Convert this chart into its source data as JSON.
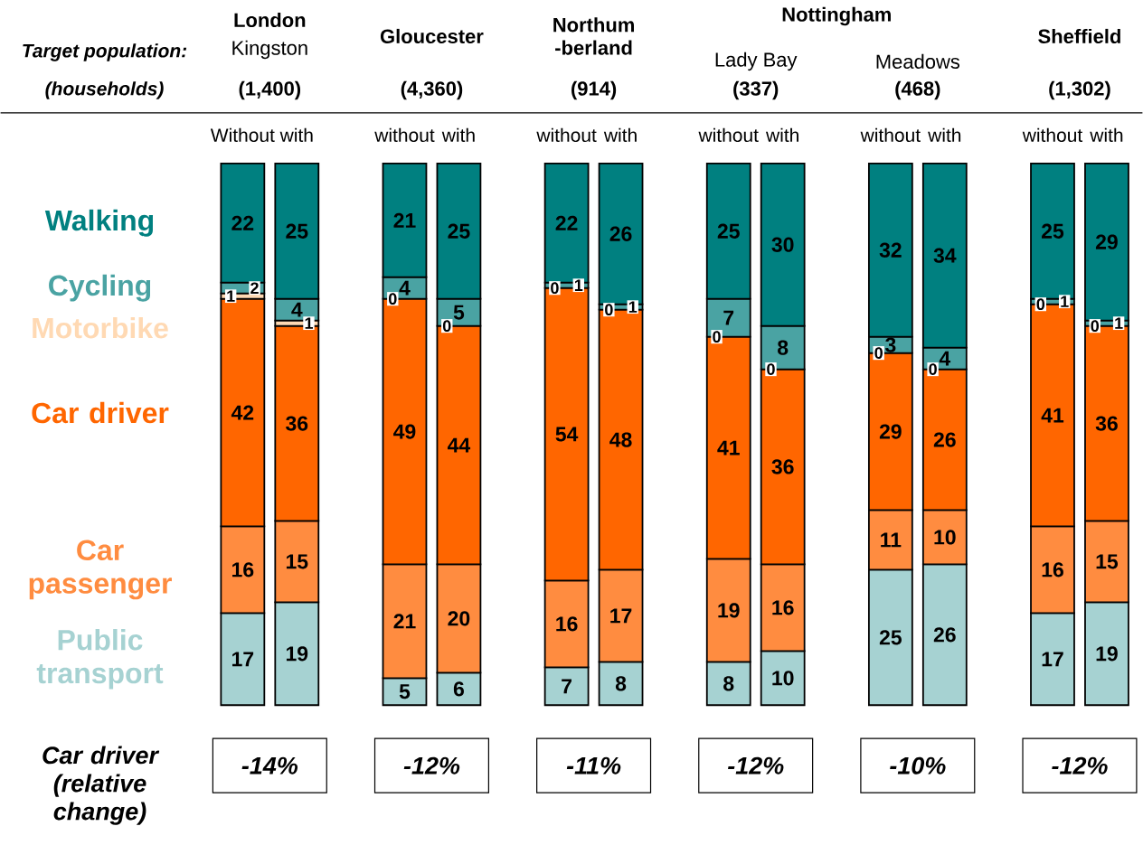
{
  "chart_data": [
    {
      "type": "bar",
      "title": "London",
      "subtitle": "Kingston",
      "categories": [
        "Without",
        "with"
      ],
      "series": [
        {
          "name": "Public transport",
          "color": "#a6d2d2",
          "values": [
            17,
            19
          ]
        },
        {
          "name": "Car passenger",
          "color": "#ff8c40",
          "values": [
            16,
            15
          ]
        },
        {
          "name": "Car driver",
          "color": "#ff6600",
          "values": [
            42,
            36
          ]
        },
        {
          "name": "Motorbike",
          "color": "#ffd9b3",
          "values": [
            1,
            1
          ]
        },
        {
          "name": "Cycling",
          "color": "#4aa3a3",
          "values": [
            2,
            4
          ]
        },
        {
          "name": "Walking",
          "color": "#008080",
          "values": [
            22,
            25
          ]
        }
      ],
      "stacked": true,
      "tick_labels": "x",
      "data_labels": true,
      "annotations": [
        "(1,400)",
        "-14%",
        "Target population:",
        "(households)",
        "Car driver (relative change)"
      ]
    },
    {
      "type": "bar",
      "title": "Gloucester",
      "categories": [
        "without",
        "with"
      ],
      "series": [
        {
          "color": "#a6d2d2",
          "values": [
            5,
            6
          ]
        },
        {
          "color": "#ff8c40",
          "values": [
            21,
            20
          ]
        },
        {
          "color": "#ff6600",
          "values": [
            49,
            44
          ]
        },
        {
          "color": "#4aa3a3",
          "values": [
            4,
            5
          ]
        },
        {
          "color": "#008080",
          "values": [
            21,
            25
          ]
        }
      ],
      "stacked": true,
      "tick_labels": "x",
      "data_labels": true,
      "annotations": [
        "(4,360)",
        "-12%",
        {
          "text": "0",
          "x": "without",
          "y": 75
        },
        {
          "text": "0",
          "x": "with",
          "y": 70
        }
      ]
    },
    {
      "type": "bar",
      "title": "Northum -berland",
      "categories": [
        "without",
        "with"
      ],
      "series": [
        {
          "color": "#a6d2d2",
          "values": [
            7,
            8
          ]
        },
        {
          "color": "#ff8c40",
          "values": [
            16,
            17
          ]
        },
        {
          "color": "#ff6600",
          "values": [
            54,
            48
          ]
        },
        {
          "color": "#4aa3a3",
          "values": [
            1,
            1
          ]
        },
        {
          "color": "#008080",
          "values": [
            22,
            26
          ]
        }
      ],
      "stacked": true,
      "tick_labels": "x",
      "data_labels": true,
      "annotations": [
        "(914)",
        "-11%",
        {
          "text": "0",
          "x": "without",
          "y": 77
        },
        {
          "text": "0",
          "x": "with",
          "y": 73
        }
      ]
    },
    {
      "type": "bar",
      "title": "Nottingham",
      "subtitle": "Lady Bay",
      "categories": [
        "without",
        "with"
      ],
      "series": [
        {
          "color": "#a6d2d2",
          "values": [
            8,
            10
          ]
        },
        {
          "color": "#ff8c40",
          "values": [
            19,
            16
          ]
        },
        {
          "color": "#ff6600",
          "values": [
            41,
            36
          ]
        },
        {
          "color": "#4aa3a3",
          "values": [
            7,
            8
          ]
        },
        {
          "color": "#008080",
          "values": [
            25,
            30
          ]
        }
      ],
      "stacked": true,
      "tick_labels": "x",
      "data_labels": true,
      "annotations": [
        "(337)",
        "-12%",
        {
          "text": "0",
          "x": "without",
          "y": 68
        },
        {
          "text": "0",
          "x": "with",
          "y": 62
        }
      ]
    },
    {
      "type": "bar",
      "subtitle": "Meadows",
      "categories": [
        "without",
        "with"
      ],
      "series": [
        {
          "color": "#a6d2d2",
          "values": [
            25,
            26
          ]
        },
        {
          "color": "#ff8c40",
          "values": [
            11,
            10
          ]
        },
        {
          "color": "#ff6600",
          "values": [
            29,
            26
          ]
        },
        {
          "color": "#4aa3a3",
          "values": [
            3,
            4
          ]
        },
        {
          "color": "#008080",
          "values": [
            32,
            34
          ]
        }
      ],
      "stacked": true,
      "tick_labels": "x",
      "data_labels": true,
      "annotations": [
        "(468)",
        "-10%",
        {
          "text": "0",
          "x": "without",
          "y": 65
        },
        {
          "text": "0",
          "x": "with",
          "y": 62
        }
      ]
    },
    {
      "type": "bar",
      "title": "Sheffield",
      "categories": [
        "without",
        "with"
      ],
      "series": [
        {
          "color": "#a6d2d2",
          "values": [
            17,
            19
          ]
        },
        {
          "color": "#ff8c40",
          "values": [
            16,
            15
          ]
        },
        {
          "color": "#ff6600",
          "values": [
            41,
            36
          ]
        },
        {
          "color": "#4aa3a3",
          "values": [
            1,
            1
          ]
        },
        {
          "color": "#008080",
          "values": [
            25,
            29
          ]
        }
      ],
      "stacked": true,
      "tick_labels": "x",
      "data_labels": true,
      "annotations": [
        "(1,302)",
        "-12%",
        {
          "text": "0",
          "x": "without",
          "y": 74
        },
        {
          "text": "0",
          "x": "with",
          "y": 70
        }
      ]
    }
  ]
}
